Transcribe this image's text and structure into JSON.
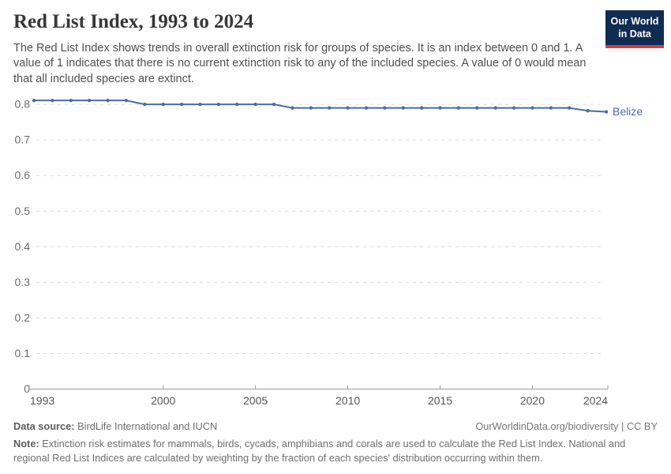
{
  "header": {
    "title": "Red List Index, 1993 to 2024",
    "subtitle": "The Red List Index shows trends in overall extinction risk for groups of species. It is an index between 0 and 1. A value of 1 indicates that there is no current extinction risk to any of the included species. A value of 0 would mean that all included species are extinct."
  },
  "logo": {
    "line1": "Our World",
    "line2": "in Data",
    "bg_color": "#0F2D52",
    "accent_color": "#E0393E"
  },
  "chart_data": {
    "type": "line",
    "title": "Red List Index, 1993 to 2024",
    "x": [
      1993,
      1994,
      1995,
      1996,
      1997,
      1998,
      1999,
      2000,
      2001,
      2002,
      2003,
      2004,
      2005,
      2006,
      2007,
      2008,
      2009,
      2010,
      2011,
      2012,
      2013,
      2014,
      2015,
      2016,
      2017,
      2018,
      2019,
      2020,
      2021,
      2022,
      2023,
      2024
    ],
    "series": [
      {
        "name": "Belize",
        "color": "#4C6BA8",
        "values": [
          0.811,
          0.811,
          0.811,
          0.811,
          0.811,
          0.811,
          0.8,
          0.8,
          0.8,
          0.8,
          0.8,
          0.8,
          0.8,
          0.8,
          0.79,
          0.79,
          0.79,
          0.79,
          0.79,
          0.79,
          0.79,
          0.79,
          0.79,
          0.79,
          0.79,
          0.79,
          0.79,
          0.79,
          0.79,
          0.79,
          0.782,
          0.779
        ]
      }
    ],
    "xlabel": "",
    "ylabel": "",
    "ylim": [
      0,
      0.82
    ],
    "yticks": [
      0,
      0.1,
      0.2,
      0.3,
      0.4,
      0.5,
      0.6,
      0.7,
      0.8
    ],
    "xticks": [
      1993,
      2000,
      2005,
      2010,
      2015,
      2020,
      2024
    ],
    "grid": "horizontal-dashed",
    "grid_color": "#dcdcdc",
    "axis_color": "#9c9c9c",
    "ytick_label_color": "#6a6a6a",
    "xtick_label_color": "#565656",
    "legend_position": "end-of-line"
  },
  "footer": {
    "source_label": "Data source:",
    "source_text": " BirdLife International and IUCN",
    "attribution": "OurWorldinData.org/biodiversity | CC BY",
    "note_label": "Note:",
    "note_text": " Extinction risk estimates for mammals, birds, cycads, amphibians and corals are used to calculate the Red List Index. National and regional Red List Indices are calculated by weighting by the fraction of each species' distribution occurring within them."
  }
}
